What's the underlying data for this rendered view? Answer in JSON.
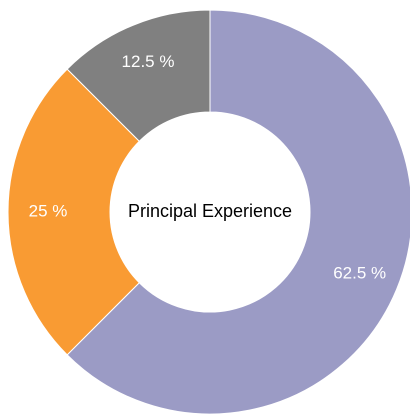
{
  "chart_data": {
    "type": "pie",
    "title": "Principal Experience",
    "categories": [
      null,
      null,
      null
    ],
    "values": [
      62.5,
      25,
      12.5
    ],
    "value_labels": [
      "62.5 %",
      "25 %",
      "12.5 %"
    ],
    "colors": [
      "#9b9bc5",
      "#f99b33",
      "#808080"
    ]
  }
}
